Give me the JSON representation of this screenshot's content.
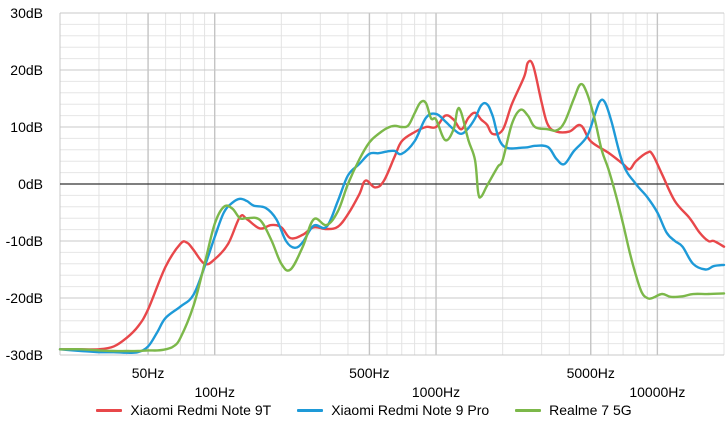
{
  "chart_data": {
    "type": "line",
    "x_scale": "log",
    "xlim": [
      20,
      20000
    ],
    "ylim": [
      -30,
      30
    ],
    "grid": true,
    "legend_position": "bottom",
    "xlabel": "",
    "ylabel": "",
    "y_ticks": [
      {
        "value": 30,
        "label": "30dB"
      },
      {
        "value": 20,
        "label": "20dB"
      },
      {
        "value": 10,
        "label": "10dB"
      },
      {
        "value": 0,
        "label": "0dB"
      },
      {
        "value": -10,
        "label": "-10dB"
      },
      {
        "value": -20,
        "label": "-20dB"
      },
      {
        "value": -30,
        "label": "-30dB"
      }
    ],
    "x_ticks": [
      {
        "value": 50,
        "label": "50Hz",
        "row": 1
      },
      {
        "value": 100,
        "label": "100Hz",
        "row": 2
      },
      {
        "value": 500,
        "label": "500Hz",
        "row": 1
      },
      {
        "value": 1000,
        "label": "1000Hz",
        "row": 2
      },
      {
        "value": 5000,
        "label": "5000Hz",
        "row": 1
      },
      {
        "value": 10000,
        "label": "10000Hz",
        "row": 2
      }
    ],
    "series": [
      {
        "name": "Xiaomi Redmi Note 9T",
        "color": "#e8474a",
        "points": [
          [
            20,
            -29
          ],
          [
            25,
            -29
          ],
          [
            30,
            -29
          ],
          [
            35,
            -28.5
          ],
          [
            40,
            -27
          ],
          [
            45,
            -25
          ],
          [
            50,
            -22
          ],
          [
            60,
            -14.5
          ],
          [
            70,
            -10.5
          ],
          [
            75,
            -10.3
          ],
          [
            80,
            -11.5
          ],
          [
            90,
            -14
          ],
          [
            100,
            -13.2
          ],
          [
            115,
            -10.5
          ],
          [
            130,
            -5.8
          ],
          [
            140,
            -6.2
          ],
          [
            160,
            -7.8
          ],
          [
            180,
            -7.2
          ],
          [
            200,
            -7.6
          ],
          [
            220,
            -9.5
          ],
          [
            250,
            -8.9
          ],
          [
            280,
            -7.6
          ],
          [
            320,
            -7.9
          ],
          [
            360,
            -7.5
          ],
          [
            400,
            -5.3
          ],
          [
            450,
            -1.8
          ],
          [
            480,
            0.6
          ],
          [
            530,
            -0.6
          ],
          [
            580,
            0.5
          ],
          [
            650,
            4.8
          ],
          [
            700,
            7.5
          ],
          [
            800,
            9.1
          ],
          [
            900,
            10
          ],
          [
            1000,
            10
          ],
          [
            1100,
            12
          ],
          [
            1200,
            11.3
          ],
          [
            1300,
            9.6
          ],
          [
            1400,
            11.6
          ],
          [
            1500,
            12.5
          ],
          [
            1600,
            11.3
          ],
          [
            1700,
            10.4
          ],
          [
            1800,
            8.8
          ],
          [
            2000,
            9.5
          ],
          [
            2200,
            14
          ],
          [
            2500,
            18.8
          ],
          [
            2600,
            21.3
          ],
          [
            2750,
            20.7
          ],
          [
            3000,
            14.3
          ],
          [
            3200,
            10.4
          ],
          [
            3500,
            9.2
          ],
          [
            4000,
            9.2
          ],
          [
            4500,
            10.3
          ],
          [
            5000,
            7.5
          ],
          [
            6000,
            5.5
          ],
          [
            7000,
            3.5
          ],
          [
            7500,
            2.6
          ],
          [
            8000,
            4
          ],
          [
            9000,
            5.5
          ],
          [
            9500,
            5.2
          ],
          [
            10500,
            1.7
          ],
          [
            12000,
            -3
          ],
          [
            14000,
            -6
          ],
          [
            15500,
            -8.5
          ],
          [
            17000,
            -10
          ],
          [
            18000,
            -10
          ],
          [
            20000,
            -11
          ]
        ]
      },
      {
        "name": "Xiaomi Redmi Note 9 Pro",
        "color": "#1e9ad8",
        "points": [
          [
            20,
            -29
          ],
          [
            25,
            -29.3
          ],
          [
            30,
            -29.5
          ],
          [
            35,
            -29.5
          ],
          [
            40,
            -29.6
          ],
          [
            45,
            -29.5
          ],
          [
            50,
            -28.5
          ],
          [
            55,
            -26
          ],
          [
            60,
            -23.5
          ],
          [
            70,
            -21.5
          ],
          [
            80,
            -19.5
          ],
          [
            90,
            -14.5
          ],
          [
            100,
            -9.3
          ],
          [
            110,
            -5
          ],
          [
            120,
            -3.3
          ],
          [
            130,
            -2.6
          ],
          [
            140,
            -3
          ],
          [
            150,
            -3.8
          ],
          [
            170,
            -4.2
          ],
          [
            190,
            -6.2
          ],
          [
            210,
            -10
          ],
          [
            230,
            -11.2
          ],
          [
            250,
            -10.2
          ],
          [
            280,
            -7.3
          ],
          [
            320,
            -7.5
          ],
          [
            360,
            -3
          ],
          [
            400,
            1.5
          ],
          [
            450,
            3.5
          ],
          [
            500,
            5.3
          ],
          [
            550,
            5.4
          ],
          [
            600,
            5.7
          ],
          [
            650,
            5.8
          ],
          [
            700,
            5.3
          ],
          [
            800,
            7.5
          ],
          [
            900,
            11.6
          ],
          [
            1000,
            12.3
          ],
          [
            1100,
            11
          ],
          [
            1200,
            9.6
          ],
          [
            1300,
            8.8
          ],
          [
            1400,
            9.8
          ],
          [
            1500,
            11.5
          ],
          [
            1600,
            13.8
          ],
          [
            1700,
            14
          ],
          [
            1800,
            12
          ],
          [
            2000,
            6.8
          ],
          [
            2500,
            6.4
          ],
          [
            2800,
            6.7
          ],
          [
            3200,
            6.5
          ],
          [
            3500,
            4.4
          ],
          [
            3800,
            3.5
          ],
          [
            4200,
            5.8
          ],
          [
            4800,
            8.3
          ],
          [
            5200,
            12
          ],
          [
            5500,
            14.5
          ],
          [
            5800,
            14.3
          ],
          [
            6200,
            11
          ],
          [
            7000,
            3.5
          ],
          [
            8000,
            0
          ],
          [
            9000,
            -2.3
          ],
          [
            10000,
            -5
          ],
          [
            11000,
            -8.5
          ],
          [
            12000,
            -10
          ],
          [
            13000,
            -11
          ],
          [
            14500,
            -14
          ],
          [
            16500,
            -15
          ],
          [
            18000,
            -14.4
          ],
          [
            20000,
            -14.2
          ]
        ]
      },
      {
        "name": "Realme 7 5G",
        "color": "#7cb84a",
        "points": [
          [
            20,
            -29
          ],
          [
            25,
            -29
          ],
          [
            30,
            -29.2
          ],
          [
            35,
            -29.3
          ],
          [
            40,
            -29.3
          ],
          [
            45,
            -29.3
          ],
          [
            50,
            -29.2
          ],
          [
            55,
            -29.2
          ],
          [
            60,
            -29
          ],
          [
            65,
            -28.5
          ],
          [
            70,
            -27
          ],
          [
            80,
            -21.5
          ],
          [
            90,
            -14
          ],
          [
            100,
            -7
          ],
          [
            110,
            -4
          ],
          [
            120,
            -4.3
          ],
          [
            130,
            -6
          ],
          [
            140,
            -6
          ],
          [
            160,
            -6.3
          ],
          [
            180,
            -9.8
          ],
          [
            200,
            -14
          ],
          [
            220,
            -15
          ],
          [
            250,
            -11
          ],
          [
            280,
            -6.2
          ],
          [
            320,
            -7.2
          ],
          [
            360,
            -4.8
          ],
          [
            400,
            0
          ],
          [
            450,
            4.3
          ],
          [
            500,
            7.3
          ],
          [
            550,
            8.8
          ],
          [
            600,
            9.8
          ],
          [
            650,
            10.2
          ],
          [
            700,
            10
          ],
          [
            750,
            10.3
          ],
          [
            800,
            12.4
          ],
          [
            850,
            14.3
          ],
          [
            900,
            14.2
          ],
          [
            950,
            11.5
          ],
          [
            1000,
            11.3
          ],
          [
            1100,
            7.7
          ],
          [
            1200,
            9.6
          ],
          [
            1250,
            13
          ],
          [
            1300,
            12.5
          ],
          [
            1400,
            7.7
          ],
          [
            1500,
            4.2
          ],
          [
            1550,
            -1.5
          ],
          [
            1600,
            -2.2
          ],
          [
            1700,
            -0.3
          ],
          [
            1900,
            3
          ],
          [
            2000,
            4.2
          ],
          [
            2200,
            10.5
          ],
          [
            2400,
            13
          ],
          [
            2600,
            12
          ],
          [
            2800,
            10
          ],
          [
            3200,
            9.6
          ],
          [
            3500,
            9.4
          ],
          [
            3800,
            10.8
          ],
          [
            4200,
            15
          ],
          [
            4500,
            17.5
          ],
          [
            4800,
            16
          ],
          [
            5200,
            11.5
          ],
          [
            5600,
            6
          ],
          [
            6000,
            2.7
          ],
          [
            6500,
            -2
          ],
          [
            7000,
            -7
          ],
          [
            7500,
            -12
          ],
          [
            8000,
            -16
          ],
          [
            8500,
            -19
          ],
          [
            9000,
            -20
          ],
          [
            9500,
            -20
          ],
          [
            10500,
            -19.3
          ],
          [
            11500,
            -19.8
          ],
          [
            13000,
            -19.7
          ],
          [
            14500,
            -19.3
          ],
          [
            17000,
            -19.3
          ],
          [
            20000,
            -19.2
          ]
        ]
      }
    ]
  }
}
